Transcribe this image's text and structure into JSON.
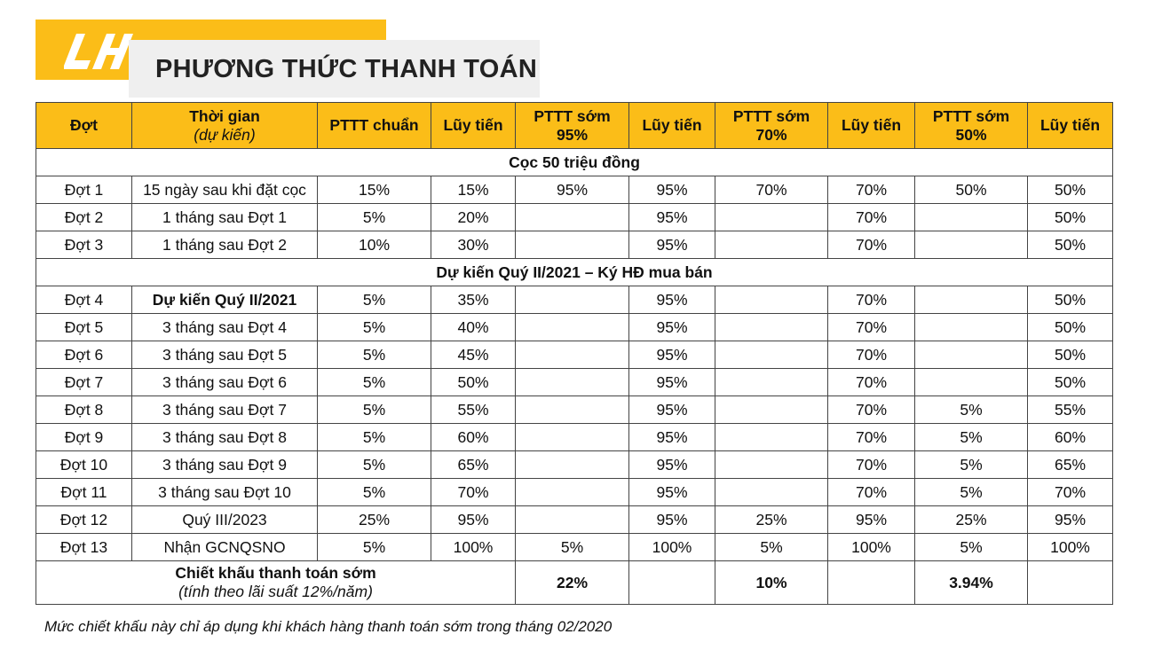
{
  "header": {
    "title": "PHƯƠNG THỨC THANH TOÁN"
  },
  "table": {
    "columns": [
      [
        "Đợt"
      ],
      [
        "Thời gian",
        "(dự kiến)"
      ],
      [
        "PTTT chuẩn"
      ],
      [
        "Lũy tiến"
      ],
      [
        "PTTT sớm",
        "95%"
      ],
      [
        "Lũy tiến"
      ],
      [
        "PTTT sớm",
        "70%"
      ],
      [
        "Lũy tiến"
      ],
      [
        "PTTT sớm",
        "50%"
      ],
      [
        "Lũy tiến"
      ]
    ],
    "body": [
      {
        "section": "Cọc 50 triệu đồng"
      },
      {
        "cells": [
          "Đợt 1",
          "15 ngày sau khi đặt cọc",
          "15%",
          "15%",
          "95%",
          "95%",
          "70%",
          "70%",
          "50%",
          "50%"
        ]
      },
      {
        "cells": [
          "Đợt 2",
          "1 tháng sau Đợt 1",
          "5%",
          "20%",
          null,
          "95%",
          null,
          "70%",
          null,
          "50%"
        ]
      },
      {
        "cells": [
          "Đợt 3",
          "1 tháng sau Đợt 2",
          "10%",
          "30%",
          null,
          "95%",
          null,
          "70%",
          null,
          "50%"
        ]
      },
      {
        "section": "Dự kiến Quý II/2021 – Ký HĐ mua bán"
      },
      {
        "cells": [
          "Đợt 4",
          "Dự kiến Quý II/2021",
          "5%",
          "35%",
          null,
          "95%",
          null,
          "70%",
          null,
          "50%"
        ],
        "bold_time": true
      },
      {
        "cells": [
          "Đợt 5",
          "3 tháng sau Đợt 4",
          "5%",
          "40%",
          null,
          "95%",
          null,
          "70%",
          null,
          "50%"
        ]
      },
      {
        "cells": [
          "Đợt 6",
          "3 tháng sau Đợt 5",
          "5%",
          "45%",
          null,
          "95%",
          null,
          "70%",
          null,
          "50%"
        ]
      },
      {
        "cells": [
          "Đợt 7",
          "3 tháng sau Đợt 6",
          "5%",
          "50%",
          null,
          "95%",
          null,
          "70%",
          null,
          "50%"
        ]
      },
      {
        "cells": [
          "Đợt 8",
          "3 tháng sau Đợt 7",
          "5%",
          "55%",
          null,
          "95%",
          null,
          "70%",
          "5%",
          "55%"
        ]
      },
      {
        "cells": [
          "Đợt 9",
          "3 tháng sau Đợt 8",
          "5%",
          "60%",
          null,
          "95%",
          null,
          "70%",
          "5%",
          "60%"
        ]
      },
      {
        "cells": [
          "Đợt 10",
          "3 tháng sau Đợt 9",
          "5%",
          "65%",
          null,
          "95%",
          null,
          "70%",
          "5%",
          "65%"
        ]
      },
      {
        "cells": [
          "Đợt 11",
          "3 tháng sau Đợt 10",
          "5%",
          "70%",
          null,
          "95%",
          null,
          "70%",
          "5%",
          "70%"
        ]
      },
      {
        "cells": [
          "Đợt 12",
          "Quý III/2023",
          "25%",
          "95%",
          null,
          "95%",
          "25%",
          "95%",
          "25%",
          "95%"
        ]
      },
      {
        "cells": [
          "Đợt 13",
          "Nhận GCNQSNO",
          "5%",
          "100%",
          "5%",
          "100%",
          "5%",
          "100%",
          "5%",
          "100%"
        ]
      }
    ],
    "summary": {
      "label": "Chiết khấu thanh toán sớm",
      "note": "(tính theo lãi suất 12%/năm)",
      "values": [
        "22%",
        null,
        "10%",
        null,
        "3.94%",
        null
      ]
    }
  },
  "footnote": "Mức chiết khấu này chỉ áp dụng khi khách hàng thanh toán sớm trong tháng 02/2020"
}
